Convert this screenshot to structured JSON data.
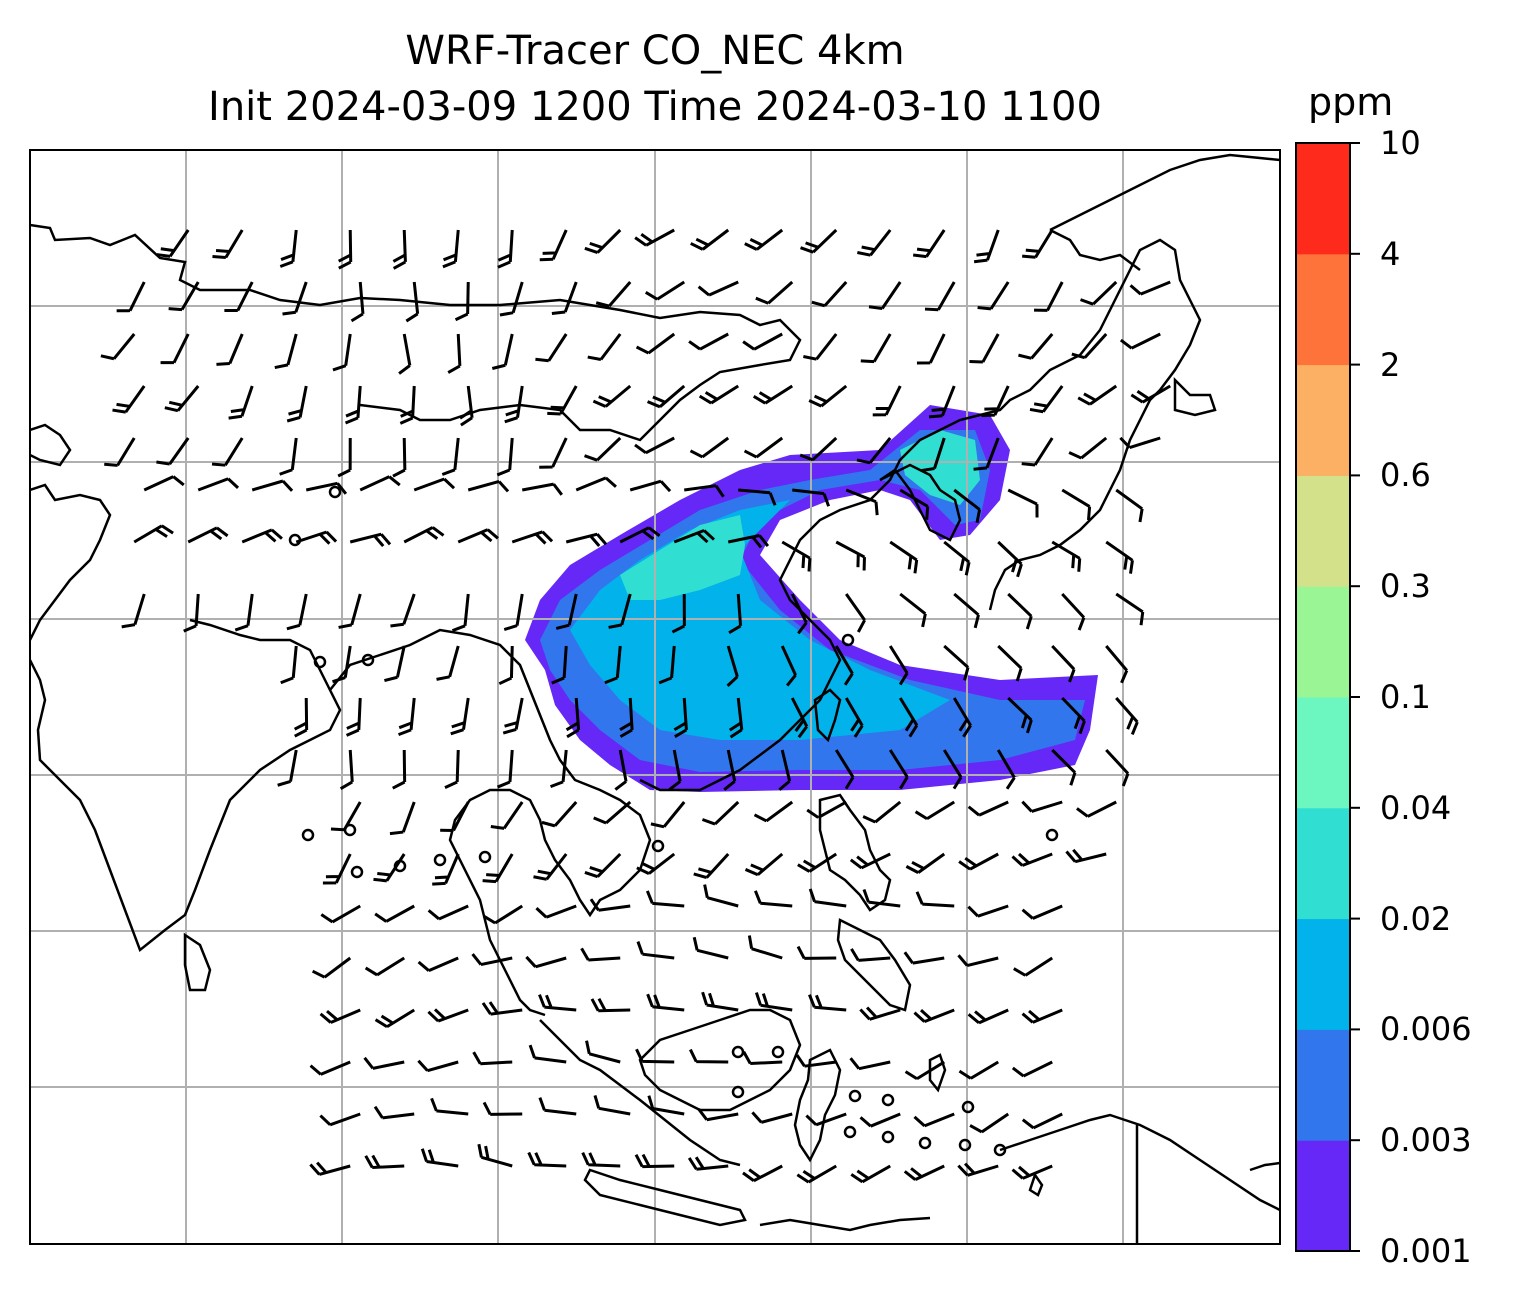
{
  "title": "WRF-Tracer CO_NEC 4km",
  "subtitle": "Init 2024-03-09 1200 Time 2024-03-10 1100",
  "colorbar": {
    "unit": "ppm",
    "levels": [
      "0.001",
      "0.003",
      "0.006",
      "0.02",
      "0.04",
      "0.1",
      "0.3",
      "0.6",
      "2",
      "4",
      "10"
    ],
    "colors": [
      "#6528f7",
      "#3276ee",
      "#02b2ea",
      "#31dfd2",
      "#6bf7bf",
      "#9af595",
      "#d2e18a",
      "#fcb063",
      "#fe7339",
      "#fe2a1c"
    ]
  },
  "map": {
    "plume_color_outer": "#6528f7",
    "plume_color_mid": "#3276ee",
    "plume_color_inner": "#02b2ea",
    "plume_color_core": "#31dfd2"
  }
}
